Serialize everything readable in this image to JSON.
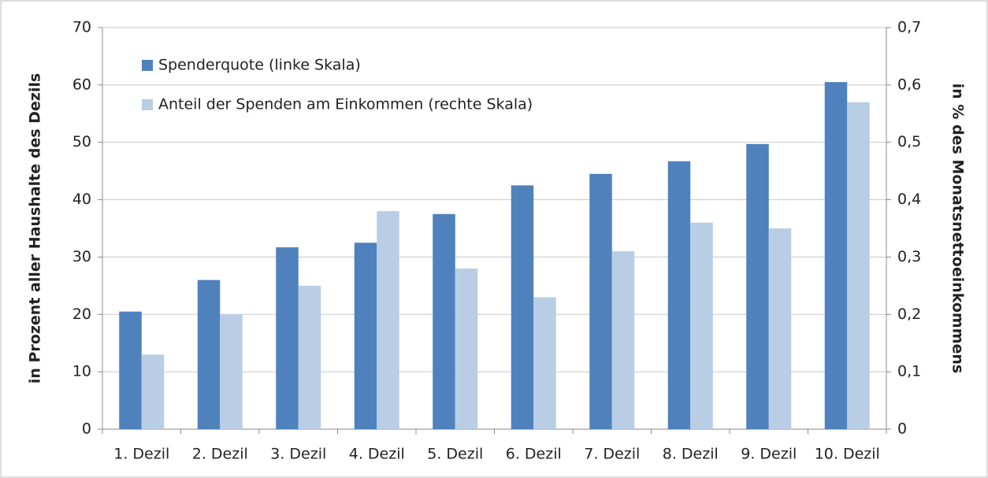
{
  "chart_data": {
    "type": "bar",
    "categories": [
      "1. Dezil",
      "2. Dezil",
      "3. Dezil",
      "4. Dezil",
      "5. Dezil",
      "6. Dezil",
      "7. Dezil",
      "8. Dezil",
      "9. Dezil",
      "10. Dezil"
    ],
    "series": [
      {
        "name": "Spenderquote (linke Skala)",
        "color": "#4f81bd",
        "values": [
          20.5,
          26,
          31.7,
          32.5,
          37.5,
          42.5,
          44.5,
          46.7,
          49.7,
          60.5
        ]
      },
      {
        "name": "Anteil der Spenden am Einkommen (rechte Skala)",
        "color": "#b9cde5",
        "axis": "y2",
        "values": [
          0.13,
          0.2,
          0.25,
          0.38,
          0.28,
          0.23,
          0.31,
          0.36,
          0.35,
          0.57
        ]
      }
    ],
    "ylabel": "in Prozent aller Haushalte des Dezils",
    "y2label": "in % des Monatsnettoeinkommens",
    "ylim": [
      0,
      70
    ],
    "yticks": [
      0,
      10,
      20,
      30,
      40,
      50,
      60,
      70
    ],
    "y2lim": [
      0,
      0.7
    ],
    "y2ticks": [
      0,
      {
        "value": 0.1,
        "label": "0,1"
      },
      {
        "value": 0.2,
        "label": "0,2"
      },
      {
        "value": 0.3,
        "label": "0,3"
      },
      {
        "value": 0.4,
        "label": "0,4"
      },
      {
        "value": 0.5,
        "label": "0,5"
      },
      {
        "value": 0.6,
        "label": "0,6"
      },
      {
        "value": 0.7,
        "label": "0,7"
      }
    ],
    "grid": true,
    "legend": "upper left"
  }
}
